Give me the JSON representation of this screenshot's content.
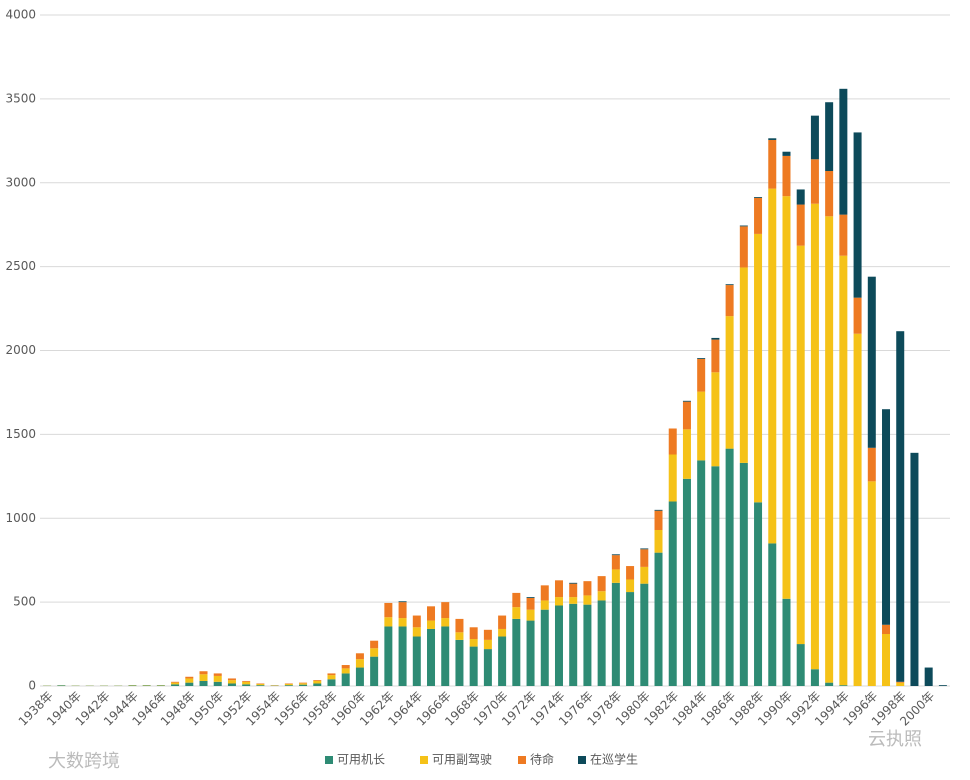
{
  "chart_data": {
    "type": "stacked_bar",
    "categories": [
      "1938年",
      null,
      "1940年",
      null,
      "1942年",
      null,
      "1944年",
      null,
      "1946年",
      null,
      "1948年",
      null,
      "1950年",
      null,
      "1952年",
      null,
      "1954年",
      null,
      "1956年",
      null,
      "1958年",
      null,
      "1960年",
      null,
      "1962年",
      null,
      "1964年",
      null,
      "1966年",
      null,
      "1968年",
      null,
      "1970年",
      null,
      "1972年",
      null,
      "1974年",
      null,
      "1976年",
      null,
      "1978年",
      null,
      "1980年",
      null,
      "1982年",
      null,
      "1984年",
      null,
      "1986年",
      null,
      "1988年",
      null,
      "1990年",
      null,
      "1992年",
      null,
      "1994年",
      null,
      "1996年",
      null,
      "1998年",
      null,
      "2000年",
      null
    ],
    "series": [
      {
        "name": "可用机长",
        "color": "#2e8b74",
        "values": [
          2,
          4,
          2,
          2,
          2,
          2,
          3,
          3,
          3,
          10,
          20,
          30,
          25,
          15,
          10,
          5,
          2,
          5,
          8,
          15,
          40,
          75,
          110,
          175,
          355,
          355,
          295,
          340,
          355,
          275,
          235,
          220,
          295,
          400,
          390,
          455,
          480,
          490,
          485,
          510,
          615,
          560,
          610,
          795,
          1100,
          1235,
          1345,
          1310,
          1415,
          1330,
          1095,
          850,
          520,
          250,
          100,
          20,
          5,
          0,
          0,
          0,
          0,
          0,
          0,
          0
        ]
      },
      {
        "name": "可用副驾驶",
        "color": "#f5c218",
        "values": [
          1,
          1,
          1,
          1,
          1,
          1,
          2,
          2,
          2,
          10,
          25,
          40,
          35,
          20,
          15,
          7,
          2,
          7,
          8,
          15,
          25,
          30,
          50,
          50,
          55,
          50,
          55,
          50,
          50,
          45,
          45,
          55,
          45,
          70,
          65,
          55,
          50,
          40,
          55,
          55,
          80,
          75,
          100,
          135,
          280,
          295,
          410,
          560,
          790,
          1165,
          1600,
          2115,
          2400,
          2375,
          2775,
          2780,
          2560,
          2100,
          1220,
          310,
          20,
          0,
          0,
          0
        ]
      },
      {
        "name": "待命",
        "color": "#ee7a22",
        "values": [
          0,
          0,
          0,
          0,
          0,
          0,
          0,
          0,
          0,
          5,
          10,
          18,
          15,
          10,
          5,
          3,
          1,
          3,
          4,
          5,
          10,
          20,
          35,
          45,
          85,
          95,
          70,
          85,
          95,
          80,
          70,
          60,
          80,
          85,
          70,
          90,
          100,
          80,
          85,
          90,
          85,
          80,
          105,
          115,
          155,
          165,
          195,
          195,
          185,
          245,
          215,
          290,
          240,
          245,
          265,
          270,
          245,
          215,
          200,
          55,
          5,
          0,
          0,
          0
        ]
      },
      {
        "name": "在巡学生",
        "color": "#0d4a5a",
        "values": [
          0,
          0,
          0,
          0,
          0,
          0,
          0,
          0,
          0,
          0,
          0,
          0,
          0,
          0,
          0,
          0,
          0,
          0,
          0,
          0,
          0,
          0,
          0,
          0,
          0,
          5,
          0,
          0,
          0,
          0,
          0,
          0,
          0,
          0,
          5,
          0,
          0,
          5,
          0,
          0,
          5,
          0,
          5,
          5,
          0,
          5,
          5,
          10,
          5,
          5,
          5,
          10,
          25,
          90,
          260,
          410,
          750,
          985,
          1020,
          1285,
          2090,
          1390,
          110,
          5
        ]
      }
    ],
    "ylim": [
      0,
      4000
    ],
    "yticks": [
      0,
      500,
      1000,
      1500,
      2000,
      2500,
      3000,
      3500,
      4000
    ],
    "grid": true,
    "legend": "bottom",
    "watermarks": [
      "大数跨境",
      "云执照"
    ]
  }
}
